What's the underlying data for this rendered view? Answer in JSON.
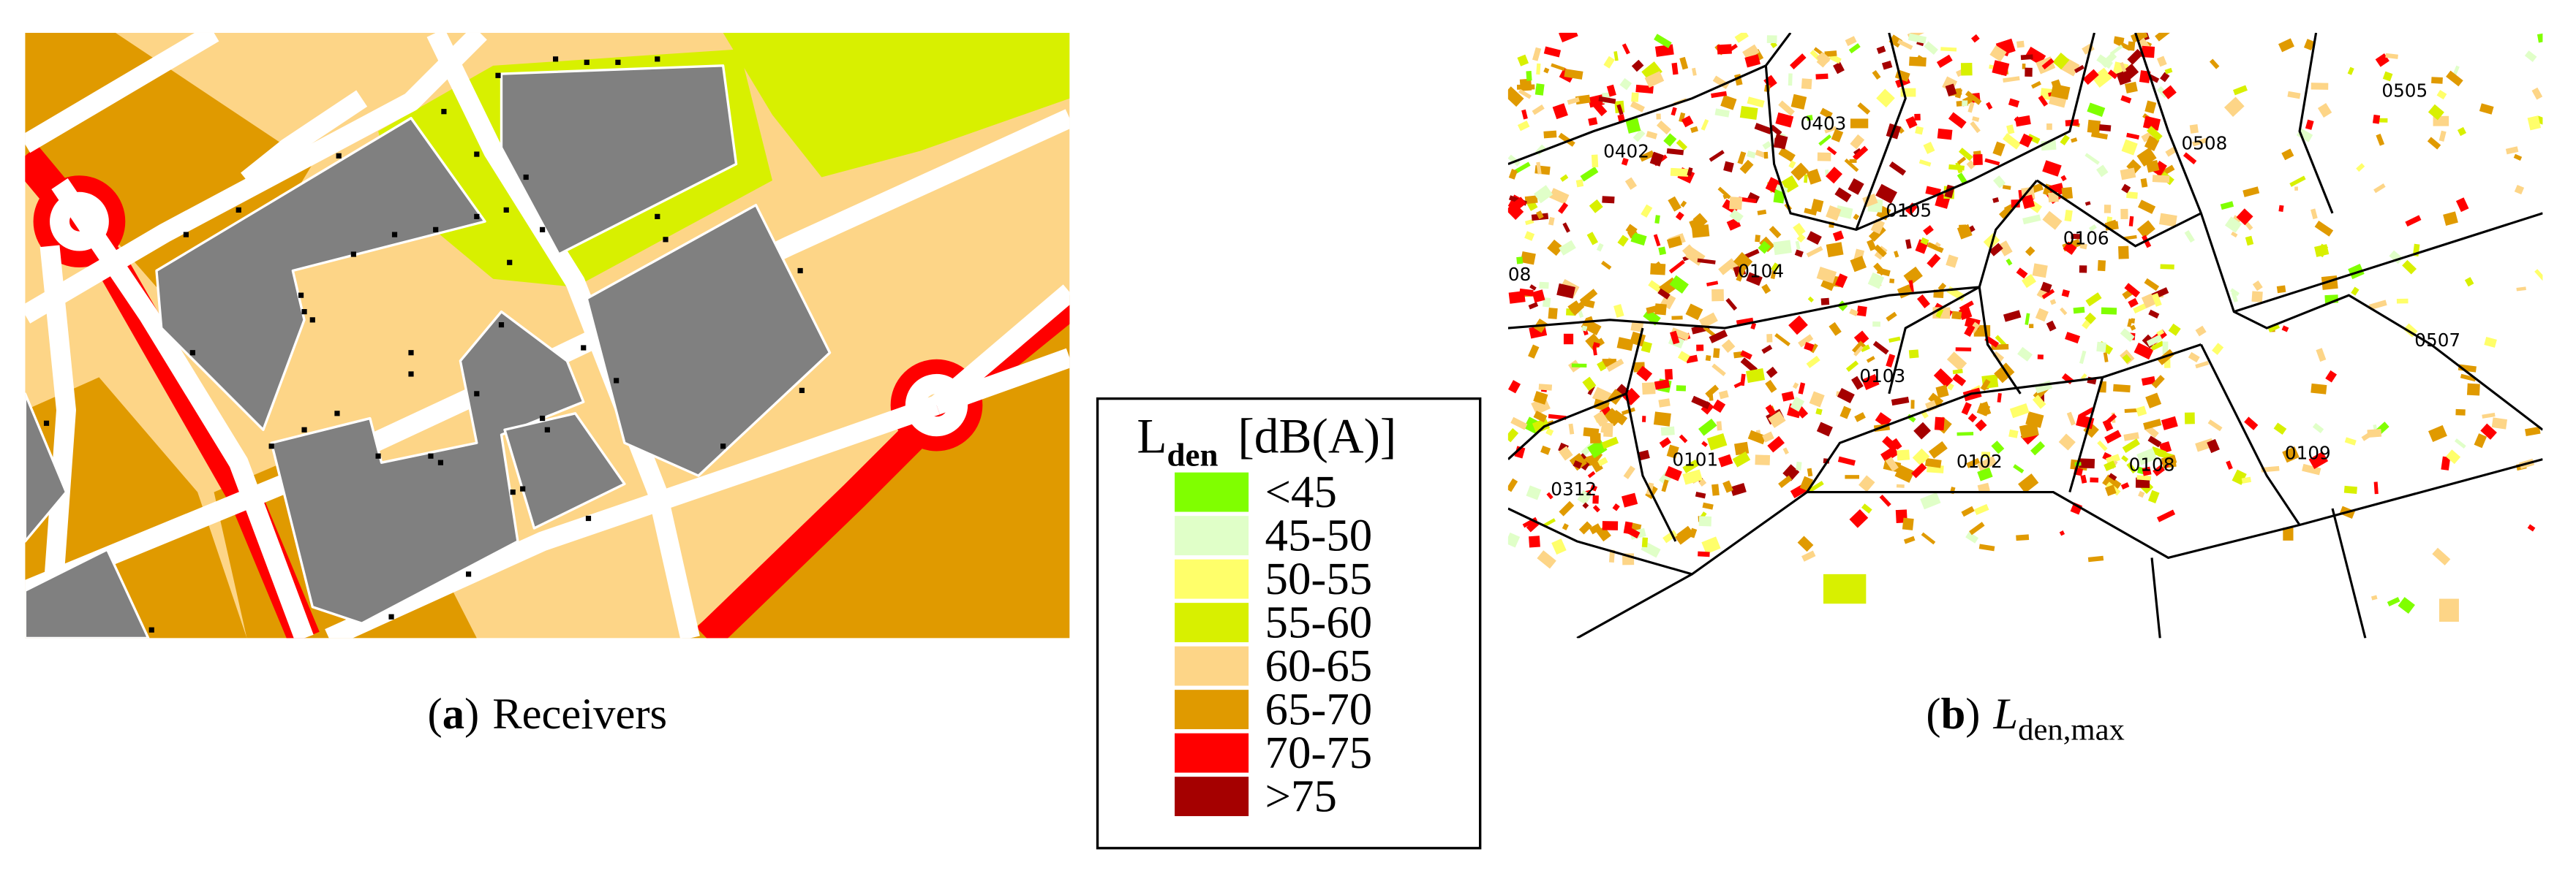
{
  "panel_a": {
    "caption": {
      "prefix": "(",
      "label": "a",
      "suffix": ")",
      "text": "Receivers"
    }
  },
  "legend": {
    "title_main": "L",
    "title_sub": "den",
    "title_unit": "[dB(A)]",
    "items": [
      {
        "label": "<45",
        "color": "#80ff00"
      },
      {
        "label": "45-50",
        "color": "#e0ffc8"
      },
      {
        "label": "50-55",
        "color": "#ffff6a"
      },
      {
        "label": "55-60",
        "color": "#d8f000"
      },
      {
        "label": "60-65",
        "color": "#fdd587"
      },
      {
        "label": "65-70",
        "color": "#e09a00"
      },
      {
        "label": "70-75",
        "color": "#ff0000"
      },
      {
        "label": ">75",
        "color": "#a50000"
      }
    ]
  },
  "panel_b": {
    "caption": {
      "prefix": "(",
      "label": "b",
      "suffix": ")",
      "variable": "L",
      "subscript": "den,max"
    },
    "districts": [
      "0505",
      "0403",
      "0402",
      "0508",
      "0105",
      "0106",
      "0104",
      "08",
      "0507",
      "0103",
      "0101",
      "0102",
      "0108",
      "0109",
      "0312"
    ]
  }
}
